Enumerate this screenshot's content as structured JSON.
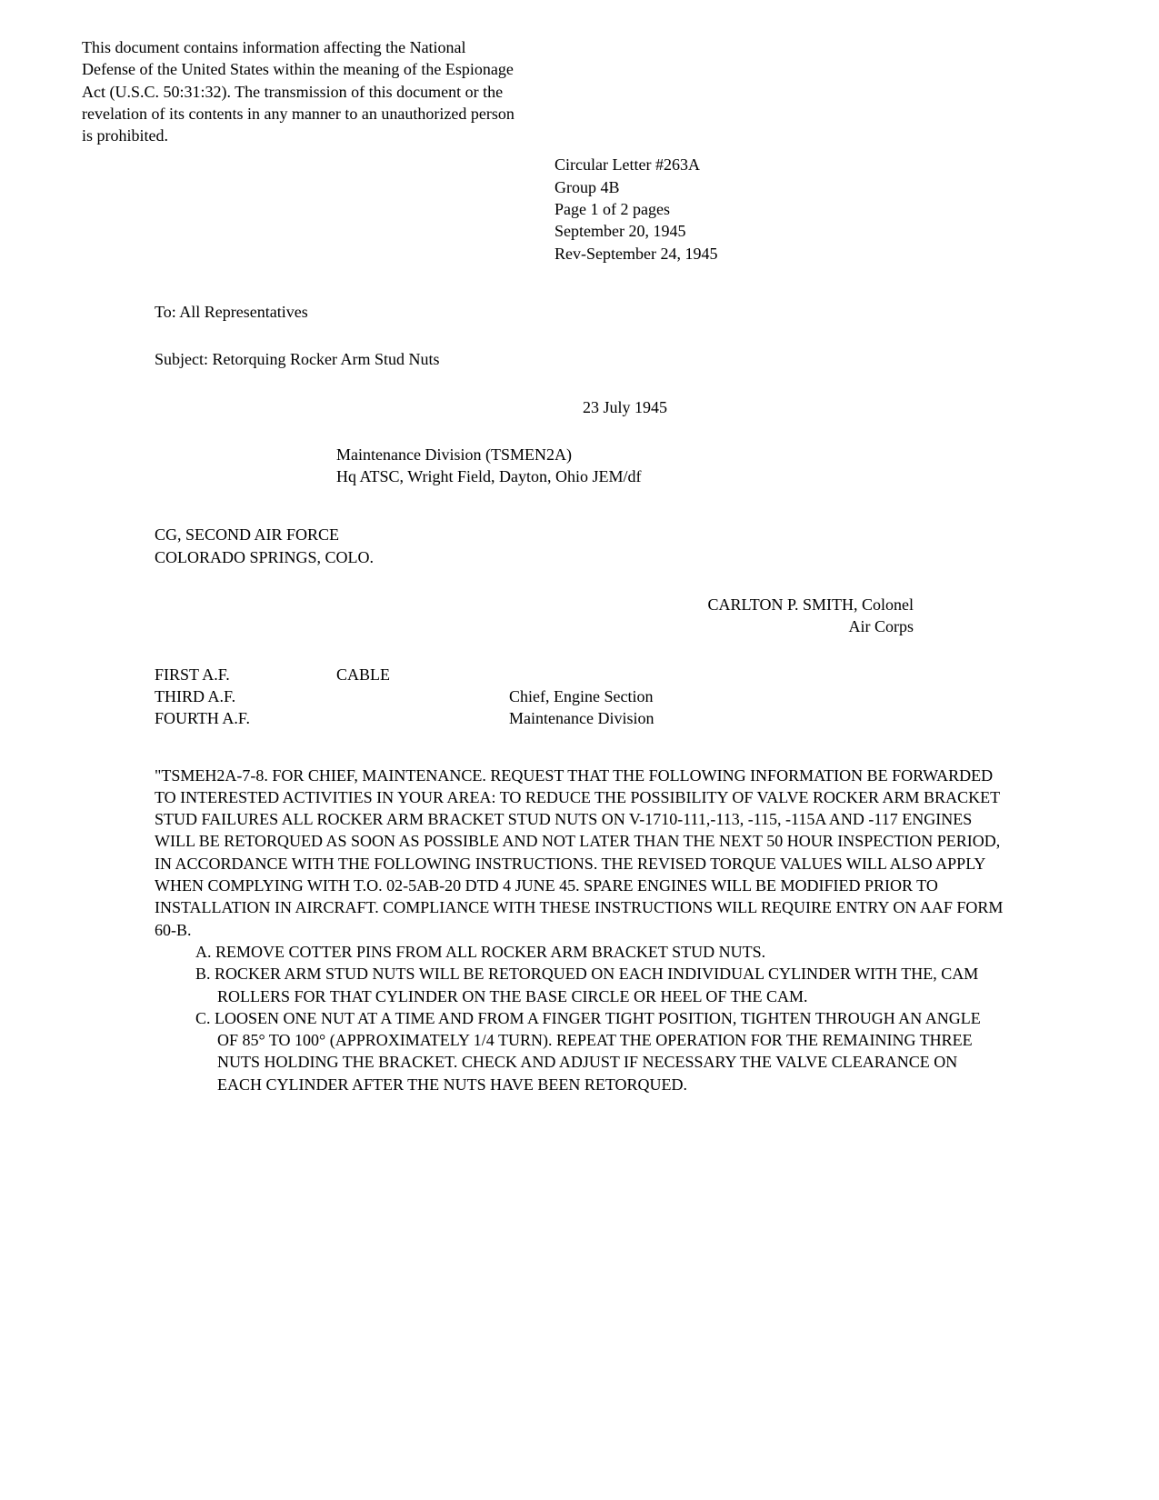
{
  "classification": "This document contains information affecting the National Defense of the United States within the meaning of the Espionage Act (U.S.C. 50:31:32). The transmission of this document or the revelation of its contents in any manner to an unauthorized person is prohibited.",
  "header": {
    "circular": "Circular Letter #263A",
    "group": "Group 4B",
    "page": "Page 1 of 2 pages",
    "date": "September 20, 1945",
    "rev": "Rev-September 24, 1945"
  },
  "to": "To: All Representatives",
  "subject": "Subject: Retorquing Rocker Arm Stud Nuts",
  "bodyDate": "23 July 1945",
  "maintenance": {
    "line1": "Maintenance Division (TSMEN2A)",
    "line2": "Hq ATSC, Wright Field, Dayton, Ohio JEM/df"
  },
  "cg": {
    "line1": "CG, SECOND AIR FORCE",
    "line2": "COLORADO SPRINGS, COLO."
  },
  "signature": {
    "name": "CARLTON P. SMITH, Colonel",
    "corps": "Air Corps"
  },
  "afList": {
    "line1": "FIRST A.F.",
    "line2": "THIRD A.F.",
    "line3": "FOURTH A.F."
  },
  "cable": "CABLE",
  "chief": {
    "line1": "Chief, Engine Section",
    "line2": "Maintenance Division"
  },
  "message": {
    "intro": "\"TSMEH2A-7-8. FOR CHIEF, MAINTENANCE. REQUEST THAT THE FOLLOWING INFORMATION BE FORWARDED TO INTERESTED ACTIVITIES IN YOUR AREA: TO REDUCE THE POSSIBILITY OF VALVE ROCKER ARM BRACKET STUD FAILURES ALL ROCKER ARM BRACKET STUD NUTS ON V-1710-111,-113, -115, -115A AND -117 ENGINES WILL BE RETORQUED AS SOON AS POSSIBLE AND NOT LATER THAN THE NEXT 50 HOUR INSPECTION PERIOD, IN ACCORDANCE WITH THE FOLLOWING INSTRUCTIONS. THE REVISED TORQUE VALUES WILL ALSO APPLY WHEN COMPLYING WITH T.O. 02-5AB-20 DTD 4 JUNE 45. SPARE ENGINES WILL BE MODIFIED PRIOR TO INSTALLATION IN AIRCRAFT. COMPLIANCE WITH THESE INSTRUCTIONS WILL REQUIRE ENTRY ON AAF FORM 60-B.",
    "itemA": "A. REMOVE COTTER PINS FROM ALL ROCKER ARM BRACKET STUD NUTS.",
    "itemB": "B. ROCKER ARM STUD NUTS WILL BE RETORQUED ON EACH INDIVIDUAL CYLINDER WITH THE, CAM ROLLERS FOR THAT CYLINDER ON THE BASE CIRCLE OR HEEL OF THE CAM.",
    "itemC": "C. LOOSEN ONE NUT AT A TIME AND FROM A FINGER TIGHT POSITION, TIGHTEN THROUGH AN ANGLE OF 85° TO 100° (APPROXIMATELY 1/4 TURN). REPEAT THE OPERATION FOR THE REMAINING THREE NUTS HOLDING THE BRACKET. CHECK AND ADJUST IF NECESSARY THE VALVE CLEARANCE ON EACH CYLINDER AFTER THE NUTS HAVE BEEN RETORQUED."
  }
}
